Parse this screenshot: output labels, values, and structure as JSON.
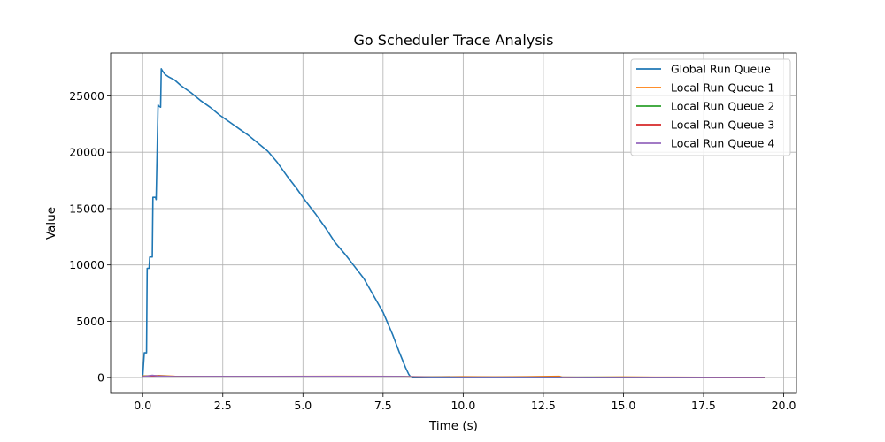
{
  "chart_data": {
    "type": "line",
    "title": "Go Scheduler Trace Analysis",
    "xlabel": "Time (s)",
    "ylabel": "Value",
    "xlim": [
      -1.0,
      20.4
    ],
    "ylim": [
      -1400,
      28800
    ],
    "x_ticks": [
      0.0,
      2.5,
      5.0,
      7.5,
      10.0,
      12.5,
      15.0,
      17.5,
      20.0
    ],
    "x_tick_labels": [
      "0.0",
      "2.5",
      "5.0",
      "7.5",
      "10.0",
      "12.5",
      "15.0",
      "17.5",
      "20.0"
    ],
    "y_ticks": [
      0,
      5000,
      10000,
      15000,
      20000,
      25000
    ],
    "y_tick_labels": [
      "0",
      "5000",
      "10000",
      "15000",
      "20000",
      "25000"
    ],
    "grid": true,
    "legend_position": "top-right",
    "series": [
      {
        "name": "Global Run Queue",
        "color": "#1f77b4",
        "x": [
          0.0,
          0.05,
          0.06,
          0.12,
          0.14,
          0.2,
          0.22,
          0.3,
          0.32,
          0.4,
          0.42,
          0.48,
          0.5,
          0.56,
          0.58,
          0.62,
          0.7,
          0.8,
          1.0,
          1.2,
          1.5,
          1.8,
          2.1,
          2.4,
          2.7,
          3.0,
          3.3,
          3.6,
          3.9,
          4.2,
          4.5,
          4.8,
          5.1,
          5.4,
          5.7,
          6.0,
          6.3,
          6.6,
          6.9,
          7.2,
          7.5,
          7.8,
          8.0,
          8.2,
          8.3,
          8.35,
          8.4,
          8.5,
          9.0,
          10.0,
          12.0,
          14.0,
          16.0,
          18.0,
          19.4
        ],
        "y": [
          0,
          2200,
          2200,
          2200,
          9700,
          9700,
          10700,
          10700,
          16000,
          16000,
          15800,
          24200,
          24100,
          24000,
          27400,
          27200,
          26900,
          26700,
          26400,
          25900,
          25300,
          24600,
          24000,
          23300,
          22700,
          22100,
          21500,
          20800,
          20100,
          19100,
          17900,
          16800,
          15600,
          14500,
          13300,
          12000,
          11000,
          9900,
          8800,
          7300,
          5800,
          3800,
          2300,
          900,
          300,
          100,
          0,
          0,
          0,
          0,
          0,
          0,
          0,
          0,
          0
        ]
      },
      {
        "name": "Local Run Queue 1",
        "color": "#ff7f0e",
        "x": [
          0.0,
          0.5,
          1.0,
          2.0,
          4.0,
          6.0,
          8.0,
          9.0,
          10.0,
          11.0,
          12.0,
          13.0,
          13.1,
          14.0,
          15.0,
          16.0,
          17.5,
          19.4
        ],
        "y": [
          150,
          180,
          120,
          110,
          110,
          120,
          110,
          60,
          80,
          60,
          80,
          120,
          20,
          40,
          60,
          40,
          30,
          20
        ]
      },
      {
        "name": "Local Run Queue 2",
        "color": "#2ca02c",
        "x": [
          0.0,
          0.5,
          1.0,
          2.0,
          4.0,
          6.0,
          8.0,
          9.0,
          10.0,
          12.0,
          14.0,
          16.0,
          18.0,
          19.4
        ],
        "y": [
          120,
          140,
          100,
          100,
          100,
          100,
          90,
          50,
          40,
          40,
          40,
          30,
          30,
          20
        ]
      },
      {
        "name": "Local Run Queue 3",
        "color": "#d62728",
        "x": [
          0.0,
          0.5,
          1.0,
          2.0,
          4.0,
          6.0,
          8.0,
          9.0,
          10.0,
          12.0,
          14.0,
          16.0,
          18.0,
          19.4
        ],
        "y": [
          100,
          130,
          90,
          90,
          90,
          90,
          80,
          40,
          40,
          40,
          30,
          30,
          20,
          20
        ]
      },
      {
        "name": "Local Run Queue 4",
        "color": "#9467bd",
        "x": [
          0.0,
          0.3,
          0.5,
          1.0,
          2.0,
          4.0,
          6.0,
          8.0,
          9.0,
          10.0,
          12.0,
          14.0,
          16.0,
          18.0,
          19.4
        ],
        "y": [
          80,
          200,
          140,
          90,
          100,
          100,
          110,
          100,
          40,
          30,
          30,
          30,
          20,
          20,
          20
        ]
      }
    ]
  }
}
